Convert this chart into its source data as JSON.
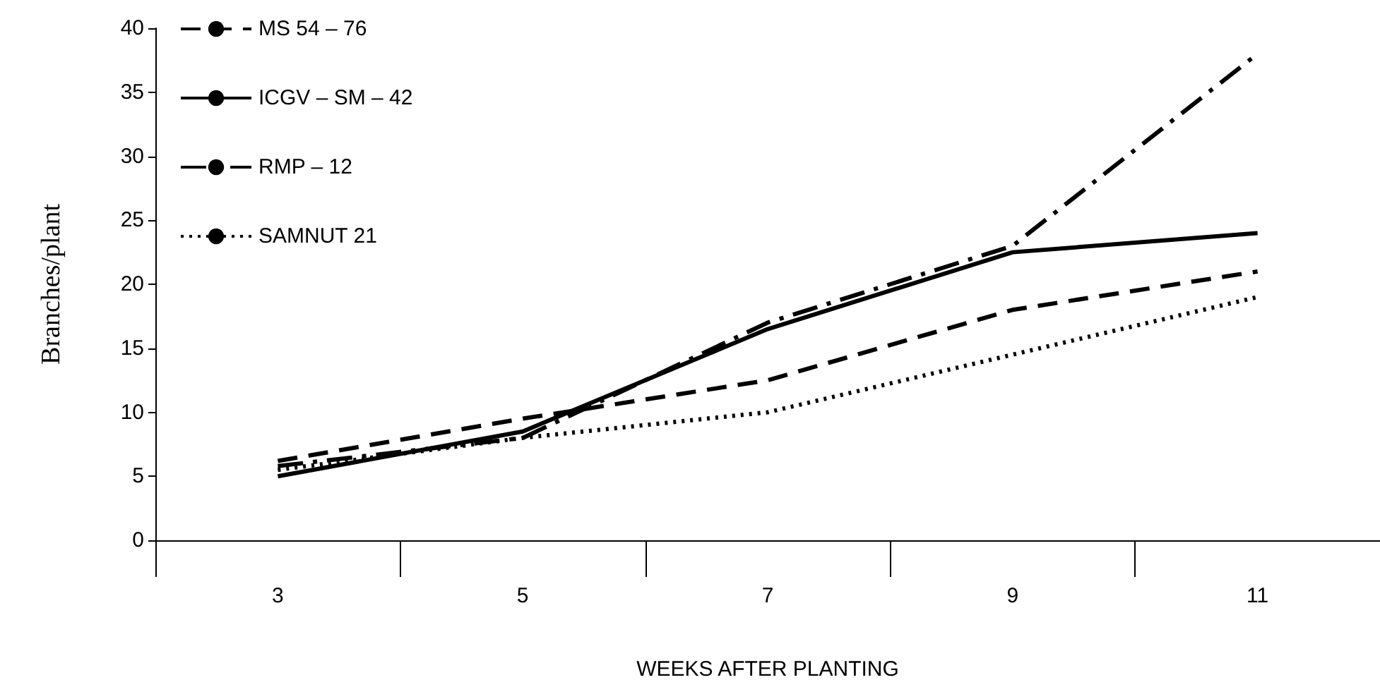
{
  "chart_data": {
    "type": "line",
    "xlabel": "WEEKS AFTER PLANTING",
    "ylabel": "Branches/plant",
    "categories": [
      "3",
      "5",
      "7",
      "9",
      "11"
    ],
    "series": [
      {
        "name": "MS 54 – 76",
        "color": "#000000",
        "line_style": "dashed",
        "values": [
          6.2,
          9.5,
          12.5,
          18,
          21
        ]
      },
      {
        "name": "ICGV – SM – 42",
        "color": "#000000",
        "line_style": "solid",
        "values": [
          5,
          8.5,
          16.5,
          22.5,
          24
        ]
      },
      {
        "name": "RMP – 12",
        "color": "#000000",
        "line_style": "dashdot",
        "values": [
          5.8,
          8,
          17,
          23,
          38
        ]
      },
      {
        "name": "SAMNUT 21",
        "color": "#000000",
        "line_style": "dotted",
        "values": [
          5.5,
          8,
          10,
          14.5,
          19
        ]
      }
    ],
    "ylim": [
      0,
      40
    ],
    "yticks": [
      0,
      5,
      10,
      15,
      20,
      25,
      30,
      35,
      40
    ],
    "grid": false,
    "legend": "top left",
    "marker": "none"
  }
}
